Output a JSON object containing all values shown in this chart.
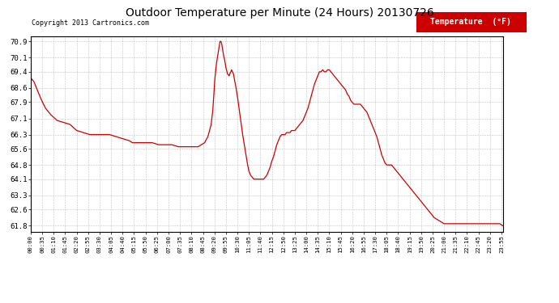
{
  "title": "Outdoor Temperature per Minute (24 Hours) 20130726",
  "copyright": "Copyright 2013 Cartronics.com",
  "legend_label": "Temperature  (°F)",
  "line_color": "#cc0000",
  "background_color": "#ffffff",
  "grid_color": "#999999",
  "yticks": [
    61.8,
    62.6,
    63.3,
    64.1,
    64.8,
    65.6,
    66.3,
    67.1,
    67.9,
    68.6,
    69.4,
    70.1,
    70.9
  ],
  "ylim": [
    61.5,
    71.15
  ],
  "xtick_labels": [
    "00:00",
    "00:35",
    "01:10",
    "01:45",
    "02:20",
    "02:55",
    "03:30",
    "04:05",
    "04:40",
    "05:15",
    "05:50",
    "06:25",
    "07:00",
    "07:35",
    "08:10",
    "08:45",
    "09:20",
    "09:55",
    "10:30",
    "11:05",
    "11:40",
    "12:15",
    "12:50",
    "13:25",
    "14:00",
    "14:35",
    "15:10",
    "15:45",
    "16:20",
    "16:55",
    "17:30",
    "18:05",
    "18:40",
    "19:15",
    "19:50",
    "20:25",
    "21:00",
    "21:35",
    "22:10",
    "22:45",
    "23:20",
    "23:55"
  ],
  "keypoints": [
    [
      0,
      69.1
    ],
    [
      10,
      68.9
    ],
    [
      20,
      68.5
    ],
    [
      30,
      68.1
    ],
    [
      45,
      67.6
    ],
    [
      60,
      67.3
    ],
    [
      80,
      67.0
    ],
    [
      100,
      66.9
    ],
    [
      120,
      66.8
    ],
    [
      140,
      66.5
    ],
    [
      160,
      66.4
    ],
    [
      180,
      66.3
    ],
    [
      200,
      66.3
    ],
    [
      220,
      66.3
    ],
    [
      240,
      66.3
    ],
    [
      260,
      66.2
    ],
    [
      280,
      66.1
    ],
    [
      300,
      66.0
    ],
    [
      310,
      65.9
    ],
    [
      330,
      65.9
    ],
    [
      350,
      65.9
    ],
    [
      370,
      65.9
    ],
    [
      390,
      65.8
    ],
    [
      410,
      65.8
    ],
    [
      430,
      65.8
    ],
    [
      450,
      65.7
    ],
    [
      470,
      65.7
    ],
    [
      490,
      65.7
    ],
    [
      510,
      65.7
    ],
    [
      520,
      65.8
    ],
    [
      530,
      65.9
    ],
    [
      540,
      66.2
    ],
    [
      550,
      66.8
    ],
    [
      555,
      67.5
    ],
    [
      558,
      68.2
    ],
    [
      561,
      69.0
    ],
    [
      564,
      69.5
    ],
    [
      567,
      69.9
    ],
    [
      570,
      70.2
    ],
    [
      573,
      70.5
    ],
    [
      575,
      70.7
    ],
    [
      577,
      70.9
    ],
    [
      580,
      70.9
    ],
    [
      582,
      70.8
    ],
    [
      585,
      70.5
    ],
    [
      588,
      70.2
    ],
    [
      591,
      70.0
    ],
    [
      595,
      69.6
    ],
    [
      600,
      69.3
    ],
    [
      605,
      69.2
    ],
    [
      607,
      69.3
    ],
    [
      610,
      69.4
    ],
    [
      612,
      69.5
    ],
    [
      615,
      69.4
    ],
    [
      618,
      69.3
    ],
    [
      620,
      69.1
    ],
    [
      625,
      68.7
    ],
    [
      630,
      68.2
    ],
    [
      635,
      67.6
    ],
    [
      640,
      67.0
    ],
    [
      645,
      66.4
    ],
    [
      650,
      65.9
    ],
    [
      655,
      65.4
    ],
    [
      660,
      64.9
    ],
    [
      665,
      64.5
    ],
    [
      670,
      64.3
    ],
    [
      675,
      64.2
    ],
    [
      680,
      64.1
    ],
    [
      690,
      64.1
    ],
    [
      700,
      64.1
    ],
    [
      710,
      64.1
    ],
    [
      715,
      64.2
    ],
    [
      720,
      64.3
    ],
    [
      725,
      64.5
    ],
    [
      730,
      64.7
    ],
    [
      735,
      65.0
    ],
    [
      740,
      65.2
    ],
    [
      745,
      65.5
    ],
    [
      750,
      65.8
    ],
    [
      755,
      66.0
    ],
    [
      760,
      66.2
    ],
    [
      765,
      66.3
    ],
    [
      770,
      66.3
    ],
    [
      775,
      66.3
    ],
    [
      780,
      66.4
    ],
    [
      785,
      66.4
    ],
    [
      790,
      66.4
    ],
    [
      795,
      66.5
    ],
    [
      800,
      66.5
    ],
    [
      805,
      66.5
    ],
    [
      810,
      66.6
    ],
    [
      815,
      66.7
    ],
    [
      820,
      66.8
    ],
    [
      825,
      66.9
    ],
    [
      830,
      67.0
    ],
    [
      835,
      67.2
    ],
    [
      840,
      67.4
    ],
    [
      845,
      67.6
    ],
    [
      850,
      67.9
    ],
    [
      855,
      68.2
    ],
    [
      860,
      68.5
    ],
    [
      865,
      68.8
    ],
    [
      870,
      69.0
    ],
    [
      875,
      69.2
    ],
    [
      880,
      69.4
    ],
    [
      885,
      69.4
    ],
    [
      890,
      69.5
    ],
    [
      895,
      69.4
    ],
    [
      900,
      69.4
    ],
    [
      905,
      69.5
    ],
    [
      910,
      69.5
    ],
    [
      915,
      69.4
    ],
    [
      920,
      69.3
    ],
    [
      925,
      69.2
    ],
    [
      930,
      69.1
    ],
    [
      935,
      69.0
    ],
    [
      940,
      68.9
    ],
    [
      945,
      68.8
    ],
    [
      950,
      68.7
    ],
    [
      955,
      68.6
    ],
    [
      960,
      68.5
    ],
    [
      965,
      68.3
    ],
    [
      970,
      68.2
    ],
    [
      975,
      68.0
    ],
    [
      980,
      67.9
    ],
    [
      985,
      67.8
    ],
    [
      990,
      67.8
    ],
    [
      995,
      67.8
    ],
    [
      1000,
      67.8
    ],
    [
      1005,
      67.8
    ],
    [
      1010,
      67.7
    ],
    [
      1015,
      67.6
    ],
    [
      1020,
      67.5
    ],
    [
      1025,
      67.4
    ],
    [
      1030,
      67.2
    ],
    [
      1035,
      67.0
    ],
    [
      1040,
      66.8
    ],
    [
      1045,
      66.6
    ],
    [
      1050,
      66.4
    ],
    [
      1055,
      66.2
    ],
    [
      1060,
      65.9
    ],
    [
      1065,
      65.6
    ],
    [
      1070,
      65.3
    ],
    [
      1075,
      65.1
    ],
    [
      1080,
      64.9
    ],
    [
      1085,
      64.8
    ],
    [
      1090,
      64.8
    ],
    [
      1095,
      64.8
    ],
    [
      1100,
      64.8
    ],
    [
      1105,
      64.7
    ],
    [
      1110,
      64.6
    ],
    [
      1115,
      64.5
    ],
    [
      1120,
      64.4
    ],
    [
      1125,
      64.3
    ],
    [
      1130,
      64.2
    ],
    [
      1135,
      64.1
    ],
    [
      1140,
      64.0
    ],
    [
      1145,
      63.9
    ],
    [
      1150,
      63.8
    ],
    [
      1155,
      63.7
    ],
    [
      1160,
      63.6
    ],
    [
      1165,
      63.5
    ],
    [
      1170,
      63.4
    ],
    [
      1175,
      63.3
    ],
    [
      1180,
      63.2
    ],
    [
      1185,
      63.1
    ],
    [
      1190,
      63.0
    ],
    [
      1195,
      62.9
    ],
    [
      1200,
      62.8
    ],
    [
      1210,
      62.6
    ],
    [
      1220,
      62.4
    ],
    [
      1230,
      62.2
    ],
    [
      1240,
      62.1
    ],
    [
      1250,
      62.0
    ],
    [
      1260,
      61.9
    ],
    [
      1270,
      61.9
    ],
    [
      1280,
      61.9
    ],
    [
      1290,
      61.9
    ],
    [
      1300,
      61.9
    ],
    [
      1310,
      61.9
    ],
    [
      1320,
      61.9
    ],
    [
      1330,
      61.9
    ],
    [
      1340,
      61.9
    ],
    [
      1350,
      61.9
    ],
    [
      1360,
      61.9
    ],
    [
      1370,
      61.9
    ],
    [
      1380,
      61.9
    ],
    [
      1390,
      61.9
    ],
    [
      1400,
      61.9
    ],
    [
      1410,
      61.9
    ],
    [
      1420,
      61.9
    ],
    [
      1430,
      61.9
    ],
    [
      1439,
      61.8
    ]
  ]
}
